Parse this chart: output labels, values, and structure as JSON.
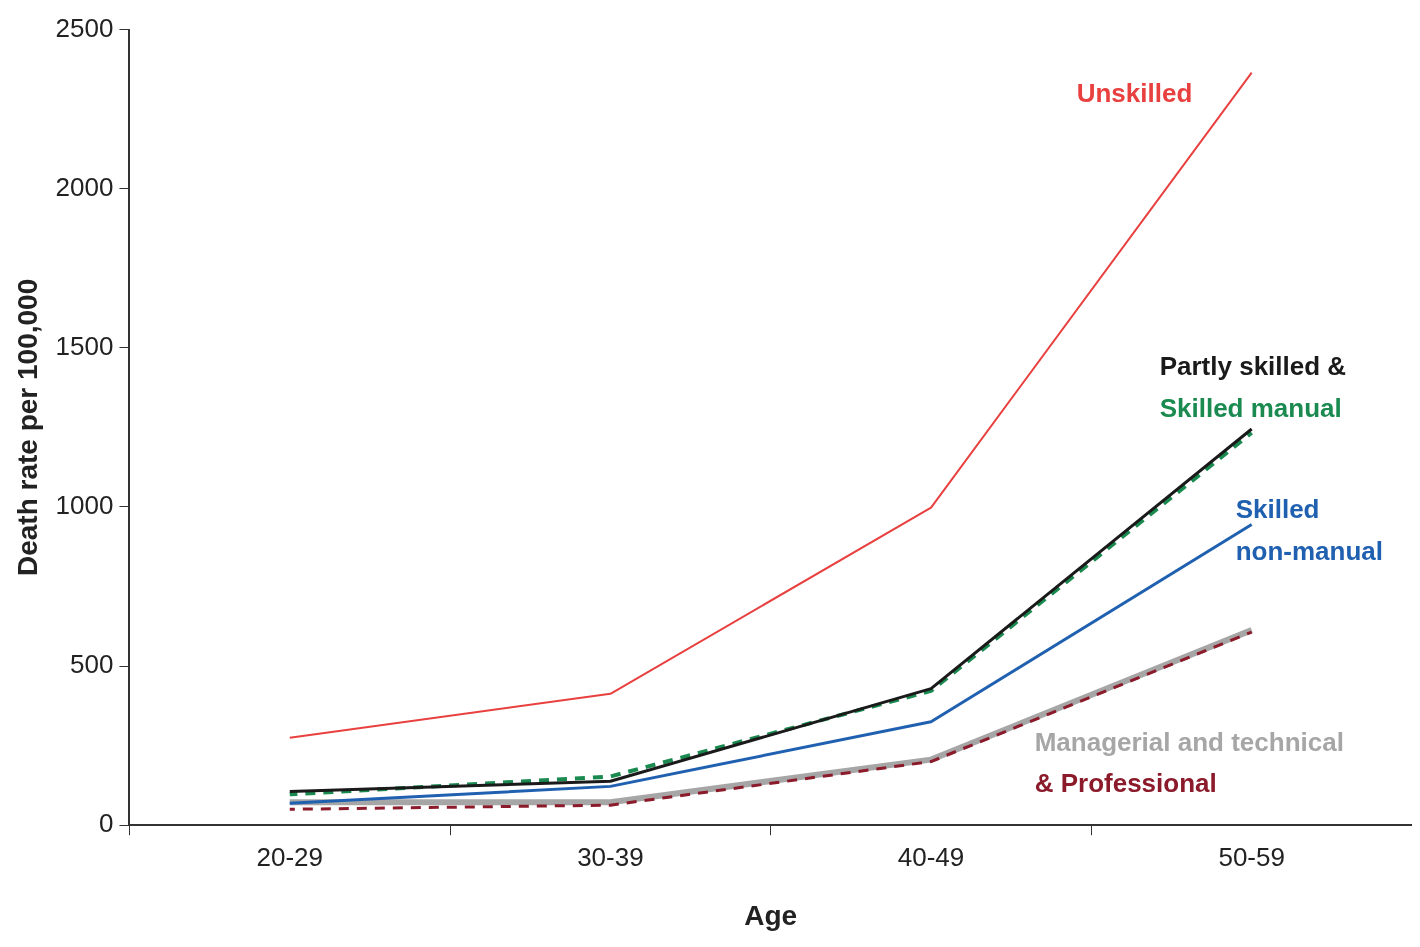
{
  "chart_data": {
    "type": "line",
    "xlabel": "Age",
    "ylabel": "Death rate per 100,000",
    "categories": [
      "20-29",
      "30-39",
      "40-49",
      "50-59"
    ],
    "ylim": [
      0,
      2500
    ],
    "yticks": [
      0,
      500,
      1000,
      1500,
      2000,
      2500
    ],
    "grid": false,
    "legend": false,
    "marker": "none",
    "series": [
      {
        "name": "Unskilled",
        "color": "#e8403f",
        "values": [
          275,
          413,
          998,
          2365
        ]
      },
      {
        "name": "Partly skilled &",
        "color": "#1a1a1a",
        "values": [
          106,
          138,
          429,
          1245
        ]
      },
      {
        "name": "Skilled manual",
        "color": "#1a8a50",
        "line_style": "dashed",
        "values": [
          97,
          153,
          422,
          1233
        ]
      },
      {
        "name": "Skilled non-manual",
        "color": "#2060b0",
        "values": [
          69,
          122,
          325,
          945
        ]
      },
      {
        "name": "Managerial and technical",
        "color": "#a6a6a6",
        "values": [
          72,
          72,
          206,
          613
        ]
      },
      {
        "name": "& Professional",
        "color": "#8b1a2a",
        "line_style": "dashed",
        "values": [
          50,
          63,
          200,
          607
        ]
      }
    ]
  }
}
